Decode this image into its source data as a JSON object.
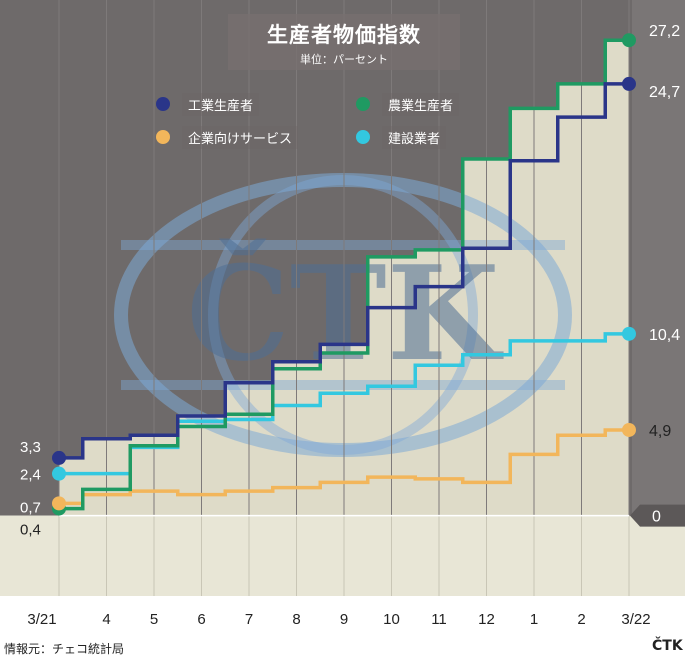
{
  "title": "生産者物価指数",
  "subtitle": "単位：パーセント",
  "source": "情報元：チェコ統計局",
  "logo": "ČTK",
  "watermark": "ČTK",
  "legend": [
    {
      "label": "工業生産者",
      "color": "#2a3589"
    },
    {
      "label": "農業生産者",
      "color": "#1f9a62"
    },
    {
      "label": "企業向けサービス",
      "color": "#f2b65b"
    },
    {
      "label": "建設業者",
      "color": "#33c8e0"
    }
  ],
  "chart_data": {
    "type": "line",
    "step": true,
    "x": [
      "3/21",
      "4",
      "5",
      "6",
      "7",
      "8",
      "9",
      "10",
      "11",
      "12",
      "1",
      "2",
      "3/22"
    ],
    "ylim": [
      -4.6,
      29.5
    ],
    "series": [
      {
        "name": "工業生産者",
        "color": "#2a3589",
        "values": [
          3.3,
          4.4,
          4.6,
          5.7,
          7.6,
          8.8,
          9.8,
          11.9,
          13.1,
          15.3,
          20.3,
          22.8,
          24.7
        ],
        "end_label": "24,7"
      },
      {
        "name": "農業生産者",
        "color": "#1f9a62",
        "values": [
          0.4,
          1.5,
          4.0,
          5.1,
          5.8,
          8.4,
          9.3,
          14.8,
          15.2,
          20.4,
          23.3,
          24.7,
          27.2
        ],
        "end_label": "27,2"
      },
      {
        "name": "企業向けサービス",
        "color": "#f2b65b",
        "values": [
          0.7,
          1.2,
          1.4,
          1.2,
          1.4,
          1.6,
          1.9,
          2.2,
          2.1,
          1.9,
          3.5,
          4.6,
          4.9
        ],
        "end_label": "4,9"
      },
      {
        "name": "建設業者",
        "color": "#33c8e0",
        "values": [
          2.4,
          2.4,
          3.9,
          5.4,
          5.5,
          6.3,
          7.0,
          7.4,
          8.6,
          9.2,
          10.0,
          10.0,
          10.4
        ],
        "end_label": "10,4"
      }
    ],
    "start_labels": [
      "3,3",
      "2,4",
      "0,7",
      "0,4"
    ],
    "zero_label": "0",
    "grid": true,
    "legend_position": "top"
  }
}
